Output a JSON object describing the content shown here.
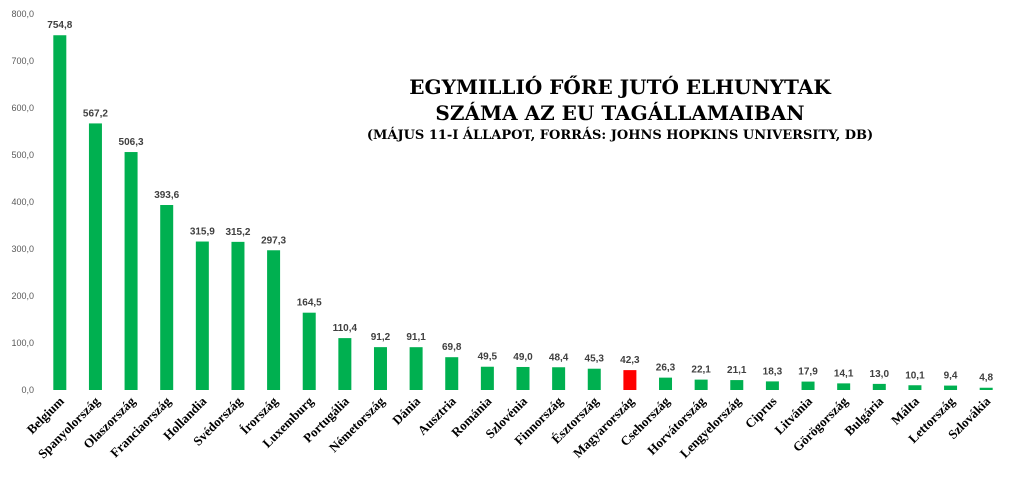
{
  "chart_data": {
    "type": "bar",
    "title": "EGYMILLIÓ FŐRE JUTÓ ELHUNYTAK",
    "title_line2": "SZÁMA AZ EU TAGÁLLAMAIBAN",
    "subtitle": "(MÁJUS 11-I ÁLLAPOT, FORRÁS: JOHNS HOPKINS UNIVERSITY, DB)",
    "categories": [
      "Belgium",
      "Spanyolország",
      "Olaszország",
      "Franciaország",
      "Hollandia",
      "Svédország",
      "Írország",
      "Luxemburg",
      "Portugália",
      "Németország",
      "Dánia",
      "Ausztria",
      "Románia",
      "Szlovénia",
      "Finnország",
      "Észtország",
      "Magyarország",
      "Csehország",
      "Horvátország",
      "Lengyelország",
      "Ciprus",
      "Litvánia",
      "Görögország",
      "Bulgária",
      "Málta",
      "Lettország",
      "Szlovákia"
    ],
    "values": [
      754.8,
      567.2,
      506.3,
      393.6,
      315.9,
      315.2,
      297.3,
      164.5,
      110.4,
      91.2,
      91.1,
      69.8,
      49.5,
      49.0,
      48.4,
      45.3,
      42.3,
      26.3,
      22.1,
      21.1,
      18.3,
      17.9,
      14.1,
      13.0,
      10.1,
      9.4,
      4.8
    ],
    "value_labels": [
      "754,8",
      "567,2",
      "506,3",
      "393,6",
      "315,9",
      "315,2",
      "297,3",
      "164,5",
      "110,4",
      "91,2",
      "91,1",
      "69,8",
      "49,5",
      "49,0",
      "48,4",
      "45,3",
      "42,3",
      "26,3",
      "22,1",
      "21,1",
      "18,3",
      "17,9",
      "14,1",
      "13,0",
      "10,1",
      "9,4",
      "4,8"
    ],
    "yticks": [
      "0,0",
      "100,0",
      "200,0",
      "300,0",
      "400,0",
      "500,0",
      "600,0",
      "700,0",
      "800,0"
    ],
    "ylim": [
      0,
      800
    ],
    "xlabel": "",
    "ylabel": "",
    "grid": false,
    "bar_color": "#00b050",
    "highlight_category": "Magyarország",
    "highlight_color": "#ff0000"
  }
}
